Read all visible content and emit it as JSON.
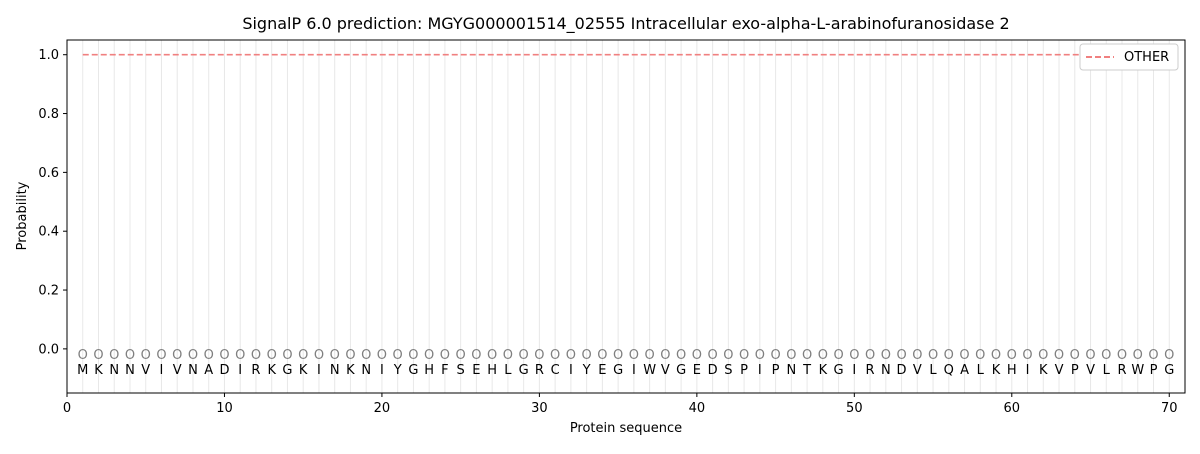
{
  "chart_data": {
    "type": "line",
    "title": "SignalP 6.0 prediction: MGYG000001514_02555 Intracellular exo-alpha-L-arabinofuranosidase 2",
    "xlabel": "Protein sequence",
    "ylabel": "Probability",
    "xlim": [
      0,
      71
    ],
    "ylim": [
      -0.15,
      1.05
    ],
    "xticks": [
      0,
      10,
      20,
      30,
      40,
      50,
      60,
      70
    ],
    "yticks": [
      0.0,
      0.2,
      0.4,
      0.6,
      0.8,
      1.0
    ],
    "ytick_labels": [
      "0.0",
      "0.2",
      "0.4",
      "0.6",
      "0.8",
      "1.0"
    ],
    "sequence": [
      "M",
      "K",
      "N",
      "N",
      "V",
      "I",
      "V",
      "N",
      "A",
      "D",
      "I",
      "R",
      "K",
      "G",
      "K",
      "I",
      "N",
      "K",
      "N",
      "I",
      "Y",
      "G",
      "H",
      "F",
      "S",
      "E",
      "H",
      "L",
      "G",
      "R",
      "C",
      "I",
      "Y",
      "E",
      "G",
      "I",
      "W",
      "V",
      "G",
      "E",
      "D",
      "S",
      "P",
      "I",
      "P",
      "N",
      "T",
      "K",
      "G",
      "I",
      "R",
      "N",
      "D",
      "V",
      "L",
      "Q",
      "A",
      "L",
      "K",
      "H",
      "I",
      "K",
      "V",
      "P",
      "V",
      "L",
      "R",
      "W",
      "P",
      "G"
    ],
    "predicted_label": "O",
    "series": [
      {
        "name": "OTHER",
        "color": "#f08080",
        "style": "dashed",
        "x_start": 1,
        "x_end": 70,
        "value": 1.0
      }
    ],
    "legend": {
      "placement": "top-right",
      "entries": [
        "OTHER"
      ]
    },
    "grid": "vertical"
  }
}
